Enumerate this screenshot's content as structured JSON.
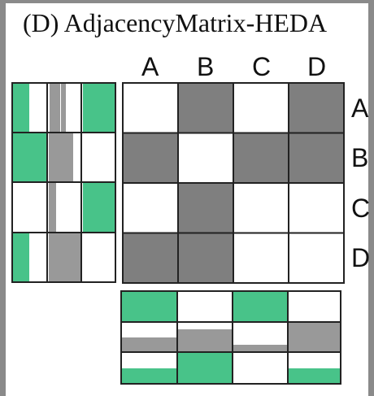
{
  "title": "(D) AdjacencyMatrix-HEDA",
  "column_labels": [
    "A",
    "B",
    "C",
    "D"
  ],
  "row_labels": [
    "A",
    "B",
    "C",
    "D"
  ],
  "matrix": [
    [
      0,
      1,
      0,
      1
    ],
    [
      1,
      0,
      1,
      1
    ],
    [
      0,
      1,
      0,
      0
    ],
    [
      1,
      1,
      0,
      0
    ]
  ],
  "colors": {
    "filled": "#7f7f7f",
    "empty": "#ffffff",
    "green": "#48c389",
    "grey": "#999999",
    "frame": "#8a8a8a",
    "line": "#222222"
  }
}
